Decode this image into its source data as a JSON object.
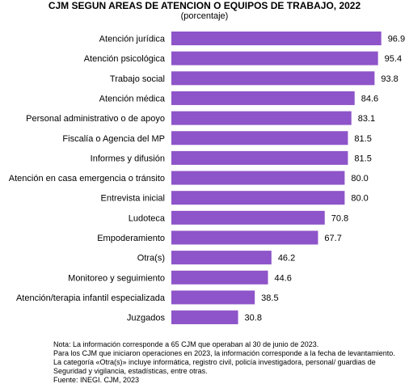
{
  "title": "CJM SEGUN AREAS DE ATENCION O EQUIPOS DE TRABAJO, 2022",
  "subtitle": "(porcentaje)",
  "chart_data": {
    "type": "bar",
    "orientation": "horizontal",
    "color": "#8e54c9",
    "categories": [
      "Atención jurídica",
      "Atención psicológica",
      "Trabajo social",
      "Atención médica",
      "Personal administrativo o de apoyo",
      "Fiscalía o Agencia del MP",
      "Informes y difusión",
      "Atención en casa emergencia o tránsito",
      "Entrevista inicial",
      "Ludoteca",
      "Empoderamiento",
      "Otra(s)",
      "Monitoreo y seguimiento",
      "Atención/terapia infantil especializada",
      "Juzgados"
    ],
    "values": [
      96.9,
      95.4,
      93.8,
      84.6,
      83.1,
      81.5,
      81.5,
      80.0,
      80.0,
      70.8,
      67.7,
      46.2,
      44.6,
      38.5,
      30.8
    ],
    "value_labels": [
      "96.9",
      "95.4",
      "93.8",
      "84.6",
      "83.1",
      "81.5",
      "81.5",
      "80.0",
      "80.0",
      "70.8",
      "67.7",
      "46.2",
      "44.6",
      "38.5",
      "30.8"
    ],
    "xlim": [
      0,
      100
    ],
    "grid": false,
    "legend": "none"
  },
  "notes": [
    "Nota: La información corresponde a 65 CJM que operaban al 30 de junio de 2023.",
    "Para los CJM que iniciaron operaciones en 2023, la información corresponde a la fecha de levantamiento.",
    "La categoría «Otra(s)» incluye informática, registro civil, policía investigadora, personal/ guardias de",
    "Seguridad y vigilancia, estadísticas, entre otras.",
    "Fuente: INEGI. CJM, 2023"
  ]
}
